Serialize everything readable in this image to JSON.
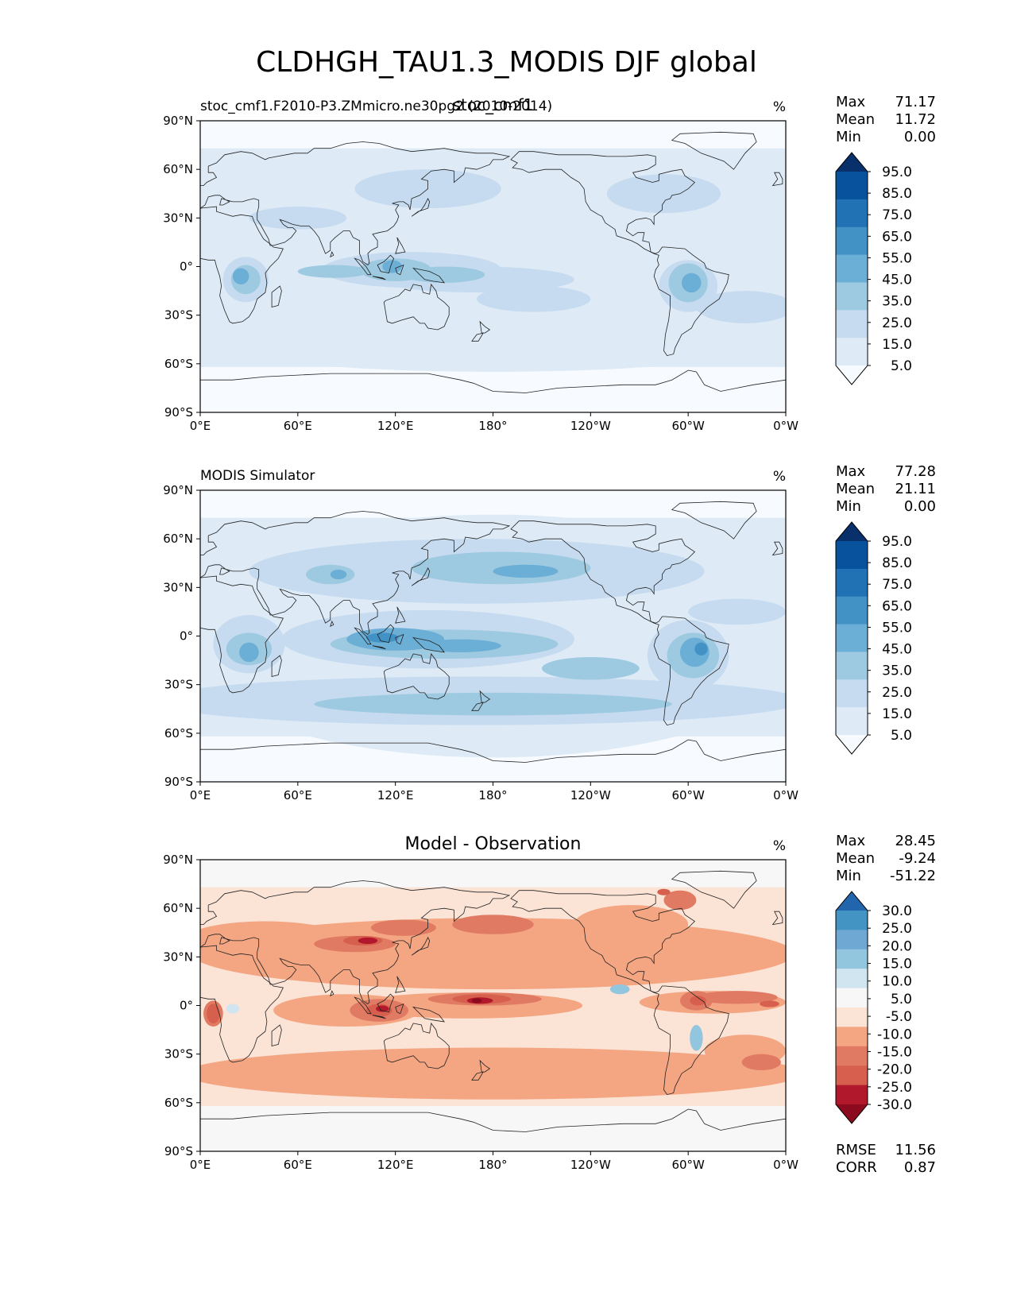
{
  "title": "CLDHGH_TAU1.3_MODIS DJF global",
  "chart_data": [
    {
      "type": "heatmap",
      "title_left": "stoc_cmf1.F2010-P3.ZMmicro.ne30pg2 (2010-2014)",
      "title_center": "stoc_cmf1",
      "units": "%",
      "stats": [
        {
          "label": "Max",
          "value": "71.17"
        },
        {
          "label": "Mean",
          "value": "11.72"
        },
        {
          "label": "Min",
          "value": "0.00"
        }
      ],
      "colorbar": {
        "levels": [
          "95.0",
          "85.0",
          "75.0",
          "65.0",
          "55.0",
          "45.0",
          "35.0",
          "25.0",
          "15.0",
          "5.0"
        ],
        "colors": [
          "#08306b",
          "#08519c",
          "#2171b5",
          "#4292c6",
          "#6baed6",
          "#9ecae1",
          "#c6dbef",
          "#deebf7",
          "#f7fbff"
        ]
      },
      "x_ticks": [
        "0°E",
        "60°E",
        "120°E",
        "180°",
        "120°W",
        "60°W",
        "0°W"
      ],
      "y_ticks": [
        "90°N",
        "60°N",
        "30°N",
        "0°",
        "30°S",
        "60°S",
        "90°S"
      ],
      "xlim": [
        0,
        360
      ],
      "ylim": [
        -90,
        90
      ]
    },
    {
      "type": "heatmap",
      "title_left": "MODIS Simulator",
      "title_center": "",
      "units": "%",
      "stats": [
        {
          "label": "Max",
          "value": "77.28"
        },
        {
          "label": "Mean",
          "value": "21.11"
        },
        {
          "label": "Min",
          "value": "0.00"
        }
      ],
      "colorbar": {
        "levels": [
          "95.0",
          "85.0",
          "75.0",
          "65.0",
          "55.0",
          "45.0",
          "35.0",
          "25.0",
          "15.0",
          "5.0"
        ],
        "colors": [
          "#08306b",
          "#08519c",
          "#2171b5",
          "#4292c6",
          "#6baed6",
          "#9ecae1",
          "#c6dbef",
          "#deebf7",
          "#f7fbff"
        ]
      },
      "x_ticks": [
        "0°E",
        "60°E",
        "120°E",
        "180°",
        "120°W",
        "60°W",
        "0°W"
      ],
      "y_ticks": [
        "90°N",
        "60°N",
        "30°N",
        "0°",
        "30°S",
        "60°S",
        "90°S"
      ],
      "xlim": [
        0,
        360
      ],
      "ylim": [
        -90,
        90
      ]
    },
    {
      "type": "heatmap",
      "title_left": "",
      "title_center": "Model - Observation",
      "units": "%",
      "stats": [
        {
          "label": "Max",
          "value": "28.45"
        },
        {
          "label": "Mean",
          "value": "-9.24"
        },
        {
          "label": "Min",
          "value": "-51.22"
        }
      ],
      "colorbar": {
        "levels": [
          "30.0",
          "25.0",
          "20.0",
          "15.0",
          "10.0",
          "5.0",
          "-5.0",
          "-10.0",
          "-15.0",
          "-20.0",
          "-25.0",
          "-30.0"
        ],
        "colors": [
          "#2166ac",
          "#4393c3",
          "#6fa9d3",
          "#92c5de",
          "#d1e5f0",
          "#f7f7f7",
          "#fbe3d6",
          "#f4a582",
          "#e07a62",
          "#d6604d",
          "#b2182b",
          "#8c0a1e"
        ]
      },
      "x_ticks": [
        "0°E",
        "60°E",
        "120°E",
        "180°",
        "120°W",
        "60°W",
        "0°W"
      ],
      "y_ticks": [
        "90°N",
        "60°N",
        "30°N",
        "0°",
        "30°S",
        "60°S",
        "90°S"
      ],
      "xlim": [
        0,
        360
      ],
      "ylim": [
        -90,
        90
      ],
      "metrics": [
        {
          "label": "RMSE",
          "value": "11.56"
        },
        {
          "label": "CORR",
          "value": "0.87"
        }
      ]
    }
  ]
}
